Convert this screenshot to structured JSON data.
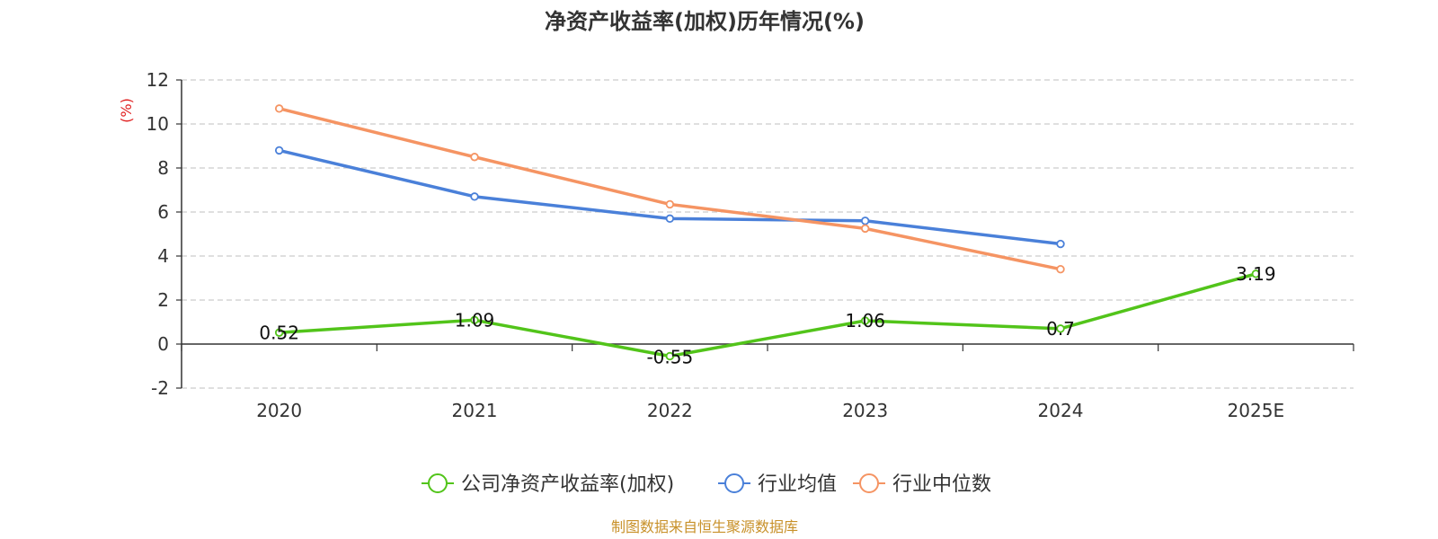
{
  "chart_data": {
    "type": "line",
    "title": "净资产收益率(加权)历年情况(%)",
    "ylabel": "(%)",
    "xlabel": "",
    "categories": [
      "2020",
      "2021",
      "2022",
      "2023",
      "2024",
      "2025E"
    ],
    "ylim": [
      -2,
      12
    ],
    "yticks": [
      -2,
      0,
      2,
      4,
      6,
      8,
      10,
      12
    ],
    "grid": true,
    "legend_position": "bottom-center",
    "series": [
      {
        "name": "公司净资产收益率(加权)",
        "color": "#52c41a",
        "values": [
          0.52,
          1.09,
          -0.55,
          1.06,
          0.7,
          3.19
        ],
        "labels": [
          "0.52",
          "1.09",
          "-0.55",
          "1.06",
          "0.7",
          "3.19"
        ],
        "show_labels": true
      },
      {
        "name": "行业均值",
        "color": "#4a80d9",
        "values": [
          8.8,
          6.7,
          5.7,
          5.6,
          4.55,
          null
        ],
        "show_labels": false
      },
      {
        "name": "行业中位数",
        "color": "#f59463",
        "values": [
          10.7,
          8.5,
          6.35,
          5.25,
          3.4,
          null
        ],
        "show_labels": false
      }
    ],
    "source": "制图数据来自恒生聚源数据库",
    "colors": {
      "axis": "#333333",
      "grid": "#cccccc",
      "ylabel": "#e02020",
      "source": "#c8912a"
    }
  }
}
